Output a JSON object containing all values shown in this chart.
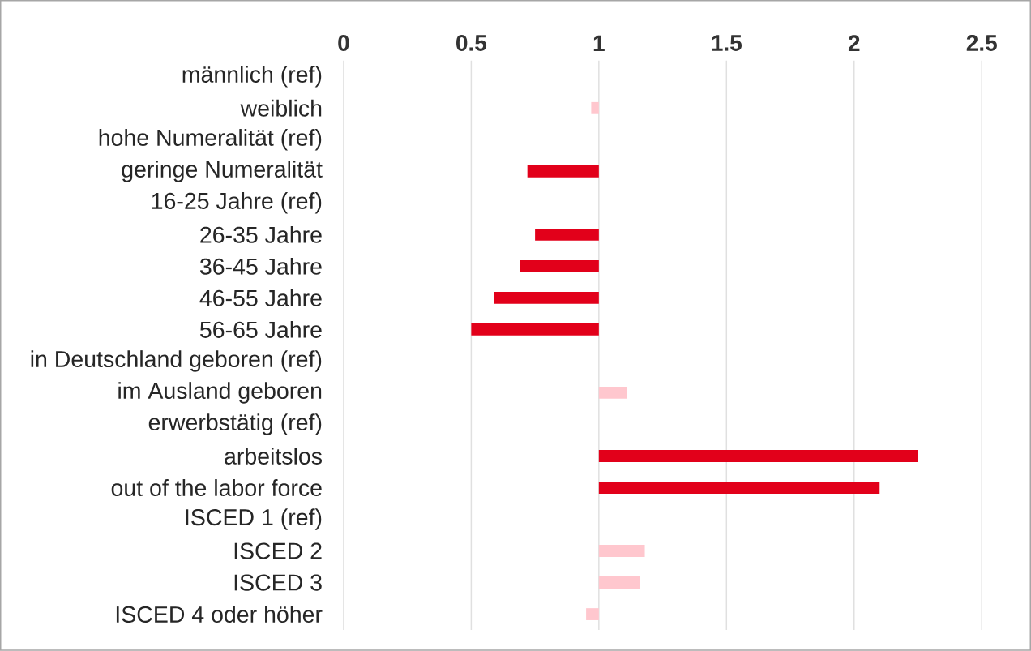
{
  "chart_data": {
    "type": "bar",
    "orientation": "horizontal",
    "categories": [
      "männlich (ref)",
      "weiblich",
      "hohe Numeralität (ref)",
      "geringe Numeralität",
      "16-25 Jahre (ref)",
      "26-35 Jahre",
      "36-45 Jahre",
      "46-55 Jahre",
      "56-65 Jahre",
      "in Deutschland geboren (ref)",
      "im Ausland geboren",
      "erwerbstätig (ref)",
      "arbeitslos",
      "out of the labor force",
      "ISCED 1 (ref)",
      "ISCED 2",
      "ISCED 3",
      "ISCED 4 oder höher"
    ],
    "base": [
      null,
      1,
      null,
      1,
      null,
      1,
      1,
      1,
      1,
      null,
      1,
      null,
      1,
      1,
      null,
      1,
      1,
      1
    ],
    "values": [
      null,
      -0.03,
      null,
      -0.28,
      null,
      -0.25,
      -0.31,
      -0.41,
      -0.5,
      null,
      0.11,
      null,
      1.25,
      1.1,
      null,
      0.18,
      0.16,
      -0.05
    ],
    "colors": [
      "#e2001a",
      "#ffc7ce",
      "#e2001a",
      "#e2001a",
      "#e2001a",
      "#e2001a",
      "#e2001a",
      "#e2001a",
      "#e2001a",
      "#e2001a",
      "#ffc7ce",
      "#e2001a",
      "#e2001a",
      "#e2001a",
      "#e2001a",
      "#ffc7ce",
      "#ffc7ce",
      "#ffc7ce"
    ],
    "xlim": [
      0,
      2.5
    ],
    "xticks": [
      0,
      0.5,
      1,
      1.5,
      2,
      2.5
    ],
    "grid": "x"
  }
}
